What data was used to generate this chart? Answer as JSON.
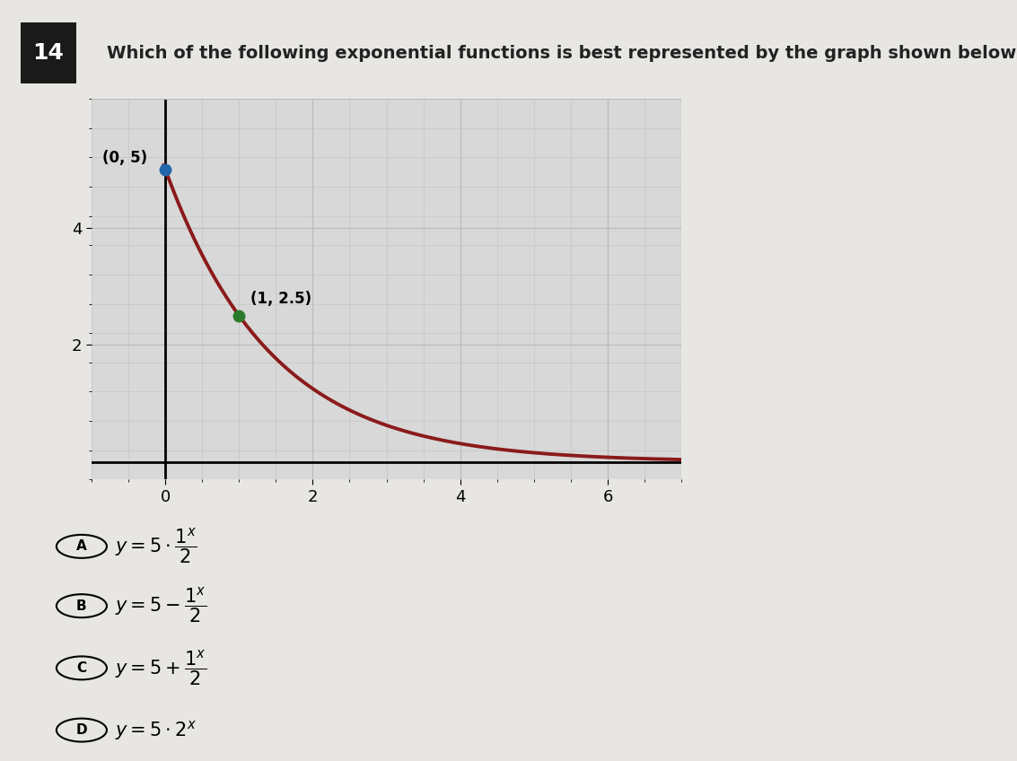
{
  "title": "Which of the following exponential functions is best represented by the graph shown below?",
  "question_number": "14",
  "graph": {
    "xlim": [
      -1,
      7
    ],
    "ylim": [
      -0.3,
      6.2
    ],
    "xticks": [
      0,
      2,
      4,
      6
    ],
    "yticks": [
      2,
      4
    ],
    "grid_minor_step": 0.5,
    "grid_color": "#bbbbbb",
    "background_color": "#d8d8d8",
    "curve_color": "#8B1A1A",
    "curve_linewidth": 2.8,
    "point1": [
      0,
      5
    ],
    "point1_color": "#2266aa",
    "point1_label": "(0, 5)",
    "point2": [
      1,
      2.5
    ],
    "point2_color": "#2a7a2a",
    "point2_label": "(1, 2.5)"
  },
  "choices": [
    {
      "label": "A",
      "math": "y=5\\cdot\\dfrac{1^x}{2}"
    },
    {
      "label": "B",
      "math": "y=5-\\dfrac{1^x}{2}"
    },
    {
      "label": "C",
      "math": "y=5+\\dfrac{1^x}{2}"
    },
    {
      "label": "D",
      "math": "y=5\\cdot 2^x"
    }
  ],
  "bg_color": "#e8e6e3",
  "title_color": "#222222",
  "title_fontsize": 14
}
